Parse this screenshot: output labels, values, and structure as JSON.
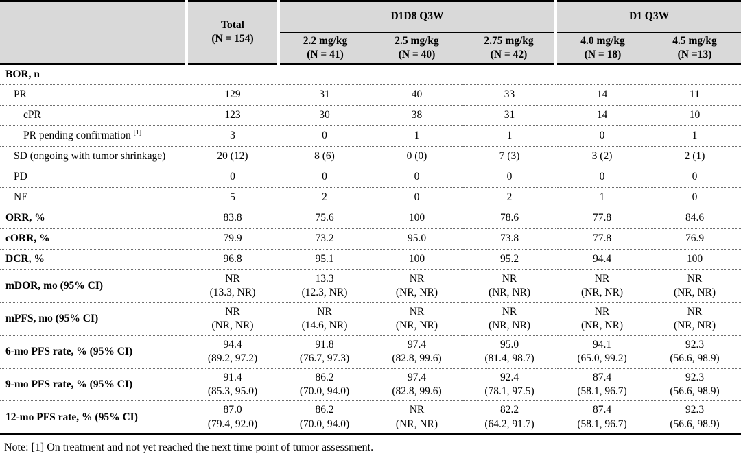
{
  "table": {
    "header": {
      "total": "Total\n(N = 154)",
      "group1": "D1D8 Q3W",
      "group2": "D1 Q3W",
      "doses": [
        "2.2 mg/kg\n(N = 41)",
        "2.5 mg/kg\n(N = 40)",
        "2.75 mg/kg\n(N = 42)",
        "4.0 mg/kg\n(N = 18)",
        "4.5 mg/kg\n(N =13)"
      ]
    },
    "rows": [
      {
        "label": "BOR, n",
        "bold": true,
        "indent": 0,
        "values": [
          "",
          "",
          "",
          "",
          "",
          ""
        ]
      },
      {
        "label": "PR",
        "bold": false,
        "indent": 1,
        "values": [
          "129",
          "31",
          "40",
          "33",
          "14",
          "11"
        ]
      },
      {
        "label": "cPR",
        "bold": false,
        "indent": 2,
        "values": [
          "123",
          "30",
          "38",
          "31",
          "14",
          "10"
        ]
      },
      {
        "label": "PR pending confirmation",
        "sup": "[1]",
        "bold": false,
        "indent": 2,
        "values": [
          "3",
          "0",
          "1",
          "1",
          "0",
          "1"
        ]
      },
      {
        "label": "SD (ongoing with tumor shrinkage)",
        "bold": false,
        "indent": 1,
        "values": [
          "20 (12)",
          "8 (6)",
          "0 (0)",
          "7 (3)",
          "3 (2)",
          "2 (1)"
        ]
      },
      {
        "label": "PD",
        "bold": false,
        "indent": 1,
        "values": [
          "0",
          "0",
          "0",
          "0",
          "0",
          "0"
        ]
      },
      {
        "label": "NE",
        "bold": false,
        "indent": 1,
        "values": [
          "5",
          "2",
          "0",
          "2",
          "1",
          "0"
        ]
      },
      {
        "label": "ORR, %",
        "bold": true,
        "indent": 0,
        "values": [
          "83.8",
          "75.6",
          "100",
          "78.6",
          "77.8",
          "84.6"
        ]
      },
      {
        "label": "cORR, %",
        "bold": true,
        "indent": 0,
        "values": [
          "79.9",
          "73.2",
          "95.0",
          "73.8",
          "77.8",
          "76.9"
        ]
      },
      {
        "label": "DCR, %",
        "bold": true,
        "indent": 0,
        "values": [
          "96.8",
          "95.1",
          "100",
          "95.2",
          "94.4",
          "100"
        ]
      },
      {
        "label": "mDOR, mo (95% CI)",
        "bold": true,
        "indent": 0,
        "values": [
          "NR\n(13.3, NR)",
          "13.3\n(12.3, NR)",
          "NR\n(NR, NR)",
          "NR\n(NR, NR)",
          "NR\n(NR, NR)",
          "NR\n(NR, NR)"
        ]
      },
      {
        "label": "mPFS, mo (95% CI)",
        "bold": true,
        "indent": 0,
        "values": [
          "NR\n(NR, NR)",
          "NR\n(14.6, NR)",
          "NR\n(NR, NR)",
          "NR\n(NR, NR)",
          "NR\n(NR, NR)",
          "NR\n(NR, NR)"
        ]
      },
      {
        "label": "6-mo PFS rate, % (95% CI)",
        "bold": true,
        "indent": 0,
        "values": [
          "94.4\n(89.2, 97.2)",
          "91.8\n(76.7, 97.3)",
          "97.4\n(82.8, 99.6)",
          "95.0\n(81.4, 98.7)",
          "94.1\n(65.0, 99.2)",
          "92.3\n(56.6, 98.9)"
        ]
      },
      {
        "label": "9-mo PFS rate, % (95% CI)",
        "bold": true,
        "indent": 0,
        "values": [
          "91.4\n(85.3, 95.0)",
          "86.2\n(70.0, 94.0)",
          "97.4\n(82.8, 99.6)",
          "92.4\n(78.1, 97.5)",
          "87.4\n(58.1, 96.7)",
          "92.3\n(56.6, 98.9)"
        ]
      },
      {
        "label": "12-mo PFS rate, % (95% CI)",
        "bold": true,
        "indent": 0,
        "values": [
          "87.0\n(79.4, 92.0)",
          "86.2\n(70.0, 94.0)",
          "NR\n(NR, NR)",
          "82.2\n(64.2, 91.7)",
          "87.4\n(58.1, 96.7)",
          "92.3\n(56.6, 98.9)"
        ]
      }
    ],
    "note": "Note: [1] On treatment and not yet reached the next time point of tumor assessment.",
    "colors": {
      "header_bg": "#d9d9d9",
      "border": "#000000",
      "dotted_separator": "#6e6e6e"
    }
  }
}
